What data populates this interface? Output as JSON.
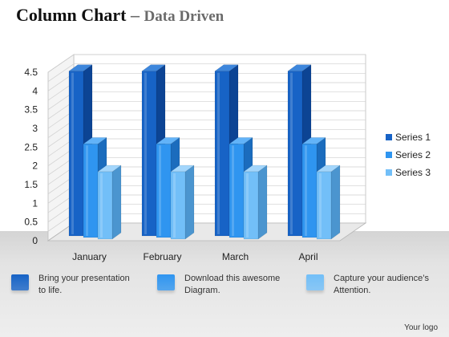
{
  "header": {
    "title_main": "Column Chart",
    "title_dash": "–",
    "title_sub": "Data Driven"
  },
  "chart_data": {
    "type": "bar",
    "categories": [
      "January",
      "February",
      "March",
      "April"
    ],
    "series": [
      {
        "name": "Series 1",
        "values": [
          4.4,
          4.4,
          4.4,
          4.4
        ]
      },
      {
        "name": "Series 2",
        "values": [
          2.5,
          2.5,
          2.5,
          2.5
        ]
      },
      {
        "name": "Series 3",
        "values": [
          1.8,
          1.8,
          1.8,
          1.8
        ]
      }
    ],
    "yticks": [
      "0",
      "0.5",
      "1",
      "1.5",
      "2",
      "2.5",
      "3",
      "3.5",
      "4",
      "4.5"
    ],
    "ylim": [
      0,
      4.5
    ],
    "grid": true,
    "legend_position": "right",
    "colors": {
      "Series 1": {
        "front": "#1763c6",
        "side": "#0c4494",
        "top": "#3d86dc"
      },
      "Series 2": {
        "front": "#2f95f0",
        "side": "#1b6cbd",
        "top": "#62b3f8"
      },
      "Series 3": {
        "front": "#72bff8",
        "side": "#4b95cf",
        "top": "#a3d6fc"
      }
    }
  },
  "features": [
    {
      "text": "Bring your presentation\nto life.",
      "color": "#1763c6"
    },
    {
      "text": "Download this awesome\nDiagram.",
      "color": "#2f95f0"
    },
    {
      "text": "Capture your audience’s\nAttention.",
      "color": "#72bff8"
    }
  ],
  "footer": {
    "text": "Your logo"
  }
}
